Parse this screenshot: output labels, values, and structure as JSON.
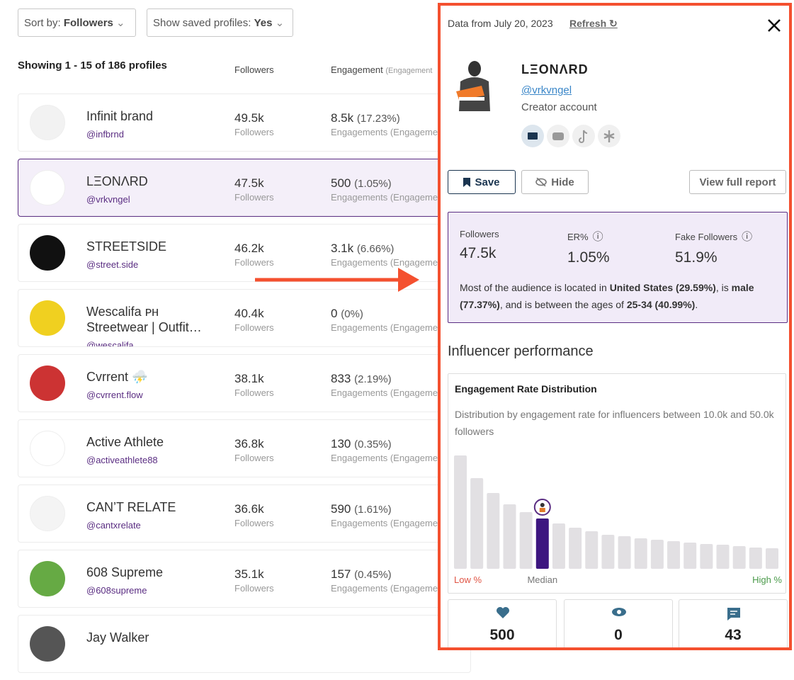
{
  "toolbar": {
    "sort_label": "Sort by:",
    "sort_value": "Followers",
    "saved_label": "Show saved profiles:",
    "saved_value": "Yes"
  },
  "list": {
    "showing": "Showing 1 - 15 of 186 profiles",
    "col_followers": "Followers",
    "col_engagement": "Engagement",
    "col_engagement_sub": "(Engagement",
    "followers_caption": "Followers",
    "engagement_caption": "Engagements (Engagement",
    "rows": [
      {
        "name": "Infinit brand",
        "handle": "@infbrnd",
        "followers": "49.5k",
        "engagements": "8.5k",
        "rate": "(17.23%)"
      },
      {
        "name": "LΞONΛRD",
        "handle": "@vrkvngel",
        "followers": "47.5k",
        "engagements": "500",
        "rate": "(1.05%)",
        "selected": true
      },
      {
        "name": "STREETSIDE",
        "handle": "@street.side",
        "followers": "46.2k",
        "engagements": "3.1k",
        "rate": "(6.66%)"
      },
      {
        "name": "Wescalifa ᴘʜ Streetwear | Outfit…",
        "handle": "@wescalifa",
        "followers": "40.4k",
        "engagements": "0",
        "rate": "(0%)"
      },
      {
        "name": "Cvrrent ⛈️",
        "handle": "@cvrrent.flow",
        "followers": "38.1k",
        "engagements": "833",
        "rate": "(2.19%)"
      },
      {
        "name": "Active Athlete",
        "handle": "@activeathlete88",
        "followers": "36.8k",
        "engagements": "130",
        "rate": "(0.35%)"
      },
      {
        "name": "CAN’T RELATE",
        "handle": "@cantxrelate",
        "followers": "36.6k",
        "engagements": "590",
        "rate": "(1.61%)"
      },
      {
        "name": "608 Supreme",
        "handle": "@608supreme",
        "followers": "35.1k",
        "engagements": "157",
        "rate": "(0.45%)"
      },
      {
        "name": "Jay Walker"
      }
    ]
  },
  "panel": {
    "data_date": "Data from July 20, 2023",
    "refresh": "Refresh",
    "name": "LΞONΛRD",
    "handle": "@vrkvngel",
    "account_type": "Creator account",
    "buttons": {
      "save": "Save",
      "hide": "Hide",
      "report": "View full report"
    },
    "stats": [
      {
        "label": "Followers",
        "value": "47.5k"
      },
      {
        "label": "ER%",
        "value": "1.05%"
      },
      {
        "label": "Fake Followers",
        "value": "51.9%"
      }
    ],
    "summary": [
      {
        "text": "Most of the audience is located in "
      },
      {
        "text": "United States (29.59%)",
        "bold": true
      },
      {
        "text": ", is "
      },
      {
        "text": "male (77.37%)",
        "bold": true
      },
      {
        "text": ", and is between the ages of "
      },
      {
        "text": "25-34 (40.99%)",
        "bold": true
      },
      {
        "text": "."
      }
    ],
    "section_title": "Influencer performance",
    "distribution": {
      "title": "Engagement Rate Distribution",
      "description": "Distribution by engagement rate for influencers between 10.0k and 50.0k followers",
      "values": [
        160,
        128,
        107,
        91,
        80,
        71,
        64,
        58,
        53,
        48,
        46,
        43,
        41,
        39,
        37,
        35,
        34,
        32,
        30,
        29
      ],
      "highlight_index": 5,
      "low_label": "Low %",
      "median_label": "Median",
      "high_label": "High %"
    },
    "metrics": [
      "500",
      "0",
      "43"
    ]
  }
}
